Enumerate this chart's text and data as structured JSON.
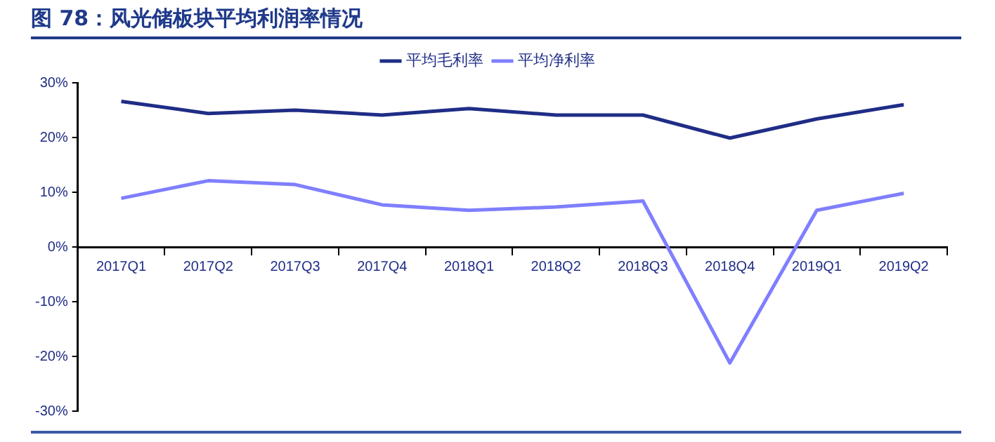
{
  "chart_data": {
    "type": "line",
    "title": "图 78：风光储板块平均利润率情况",
    "categories": [
      "2017Q1",
      "2017Q2",
      "2017Q3",
      "2017Q4",
      "2018Q1",
      "2018Q2",
      "2018Q3",
      "2018Q4",
      "2019Q1",
      "2019Q2"
    ],
    "series": [
      {
        "name": "平均毛利率",
        "color": "#1f2d86",
        "values": [
          26.6,
          24.4,
          25.0,
          24.1,
          25.3,
          24.1,
          24.1,
          19.9,
          23.4,
          26.0
        ]
      },
      {
        "name": "平均净利率",
        "color": "#7f7fff",
        "values": [
          8.9,
          12.1,
          11.4,
          7.7,
          6.7,
          7.3,
          8.4,
          -21.2,
          6.7,
          9.8
        ]
      }
    ],
    "ylim": [
      -30,
      30
    ],
    "yticks": [
      {
        "value": -30,
        "label": "-30%"
      },
      {
        "value": -20,
        "label": "-20%"
      },
      {
        "value": -10,
        "label": "-10%"
      },
      {
        "value": 0,
        "label": "0%"
      },
      {
        "value": 10,
        "label": "10%"
      },
      {
        "value": 20,
        "label": "20%"
      },
      {
        "value": 30,
        "label": "30%"
      }
    ],
    "legend": "top",
    "grid": false,
    "marker": "none",
    "line_style": "solid"
  }
}
